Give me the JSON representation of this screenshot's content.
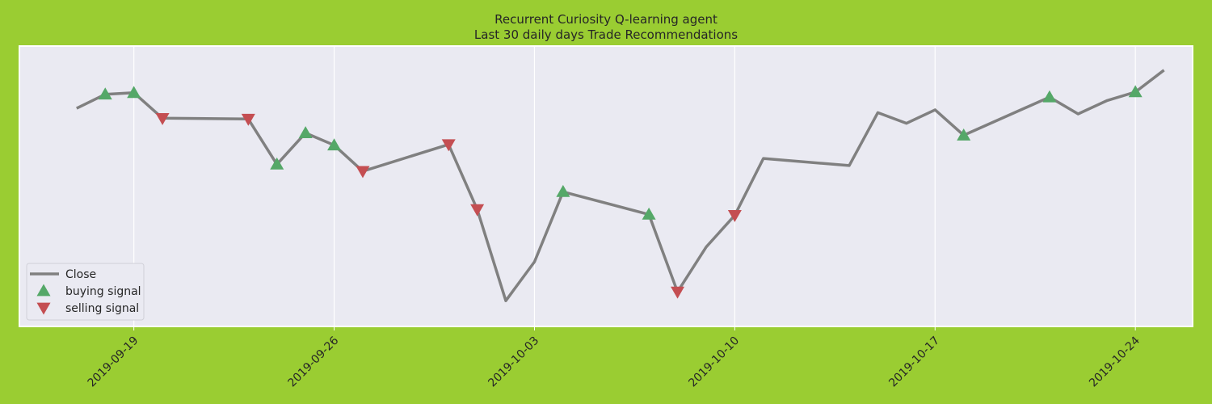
{
  "chart_data": {
    "type": "line",
    "title": "Recurrent Curiosity Q-learning agent",
    "subtitle": "Last 30 daily days Trade Recommendations",
    "xlabel": "",
    "ylabel": "",
    "grid": true,
    "legend_position": "lower-left",
    "x_axis": {
      "type": "date",
      "min": "2019-09-15",
      "max": "2019-10-26",
      "ticks": [
        "2019-09-19",
        "2019-09-26",
        "2019-10-03",
        "2019-10-10",
        "2019-10-17",
        "2019-10-24"
      ]
    },
    "y_axis": {
      "min": 0,
      "max": 100,
      "tick_labels_shown": false
    },
    "series": [
      {
        "name": "Close",
        "style": "line",
        "color": "#808080",
        "points": [
          {
            "x": "2019-09-17",
            "y": 80.3
          },
          {
            "x": "2019-09-18",
            "y": 85.8
          },
          {
            "x": "2019-09-19",
            "y": 86.4
          },
          {
            "x": "2019-09-19",
            "y": 86.4
          },
          {
            "x": "2019-09-20",
            "y": 76.4
          },
          {
            "x": "2019-09-23",
            "y": 76.1
          },
          {
            "x": "2019-09-24",
            "y": 58.3
          },
          {
            "x": "2019-09-25",
            "y": 70.6
          },
          {
            "x": "2019-09-26",
            "y": 65.8
          },
          {
            "x": "2019-09-27",
            "y": 55.6
          },
          {
            "x": "2019-09-30",
            "y": 66.1
          },
          {
            "x": "2019-10-01",
            "y": 40.6
          },
          {
            "x": "2019-10-02",
            "y": 4.7
          },
          {
            "x": "2019-10-03",
            "y": 20.0
          },
          {
            "x": "2019-10-04",
            "y": 47.5
          },
          {
            "x": "2019-10-07",
            "y": 38.6
          },
          {
            "x": "2019-10-08",
            "y": 8.2
          },
          {
            "x": "2019-10-09",
            "y": 25.8
          },
          {
            "x": "2019-10-10",
            "y": 38.3
          },
          {
            "x": "2019-10-11",
            "y": 60.6
          },
          {
            "x": "2019-10-14",
            "y": 57.8
          },
          {
            "x": "2019-10-15",
            "y": 78.6
          },
          {
            "x": "2019-10-16",
            "y": 74.4
          },
          {
            "x": "2019-10-17",
            "y": 79.7
          },
          {
            "x": "2019-10-18",
            "y": 69.7
          },
          {
            "x": "2019-10-21",
            "y": 84.7
          },
          {
            "x": "2019-10-22",
            "y": 78.1
          },
          {
            "x": "2019-10-23",
            "y": 83.3
          },
          {
            "x": "2019-10-24",
            "y": 86.7
          },
          {
            "x": "2019-10-25",
            "y": 95.3
          }
        ]
      },
      {
        "name": "buying signal",
        "style": "marker-up",
        "color": "#55a868",
        "points": [
          {
            "x": "2019-09-18",
            "y": 85.8
          },
          {
            "x": "2019-09-19",
            "y": 86.4
          },
          {
            "x": "2019-09-24",
            "y": 58.3
          },
          {
            "x": "2019-09-25",
            "y": 70.6
          },
          {
            "x": "2019-09-26",
            "y": 65.8
          },
          {
            "x": "2019-10-04",
            "y": 47.5
          },
          {
            "x": "2019-10-07",
            "y": 38.6
          },
          {
            "x": "2019-10-18",
            "y": 69.7
          },
          {
            "x": "2019-10-21",
            "y": 84.7
          },
          {
            "x": "2019-10-24",
            "y": 86.7
          }
        ]
      },
      {
        "name": "selling signal",
        "style": "marker-down",
        "color": "#c44e52",
        "points": [
          {
            "x": "2019-09-20",
            "y": 76.4
          },
          {
            "x": "2019-09-23",
            "y": 76.1
          },
          {
            "x": "2019-09-27",
            "y": 55.6
          },
          {
            "x": "2019-09-30",
            "y": 66.1
          },
          {
            "x": "2019-10-01",
            "y": 40.6
          },
          {
            "x": "2019-10-08",
            "y": 8.2
          },
          {
            "x": "2019-10-10",
            "y": 38.3
          }
        ]
      }
    ]
  },
  "colors": {
    "figure_background": "#9acd32",
    "plot_background": "#eaeaf2",
    "grid": "#ffffff"
  }
}
